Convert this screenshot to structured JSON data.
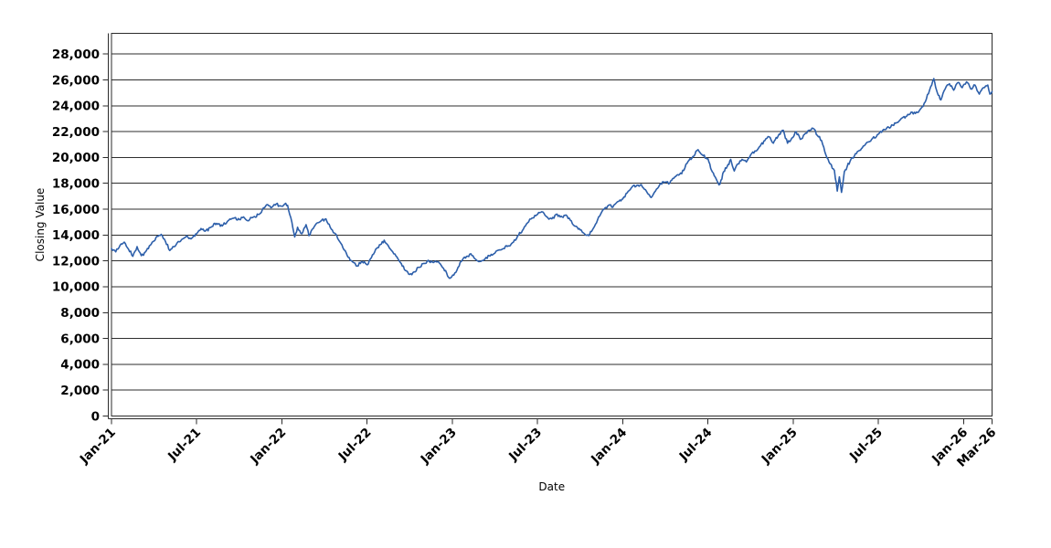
{
  "chart_data": {
    "type": "line",
    "title": "",
    "xlabel": "Date",
    "ylabel": "Closing Value",
    "legend": "none",
    "grid": "horizontal",
    "background": "#ffffff",
    "axis_color": "#2b2b2b",
    "grid_color": "#2e2e2e",
    "xlim_months": [
      0,
      62
    ],
    "ylim": [
      0,
      29600
    ],
    "ytick_interval": 2000,
    "yticks": [
      {
        "v": 0,
        "label": "0"
      },
      {
        "v": 2000,
        "label": "2,000"
      },
      {
        "v": 4000,
        "label": "4,000"
      },
      {
        "v": 6000,
        "label": "6,000"
      },
      {
        "v": 8000,
        "label": "8,000"
      },
      {
        "v": 10000,
        "label": "10,000"
      },
      {
        "v": 12000,
        "label": "12,000"
      },
      {
        "v": 14000,
        "label": "14,000"
      },
      {
        "v": 16000,
        "label": "16,000"
      },
      {
        "v": 18000,
        "label": "18,000"
      },
      {
        "v": 20000,
        "label": "20,000"
      },
      {
        "v": 22000,
        "label": "22,000"
      },
      {
        "v": 24000,
        "label": "24,000"
      },
      {
        "v": 26000,
        "label": "26,000"
      },
      {
        "v": 28000,
        "label": "28,000"
      }
    ],
    "xticks": [
      {
        "m": 0,
        "label": "Jan-21"
      },
      {
        "m": 6,
        "label": "Jul-21"
      },
      {
        "m": 12,
        "label": "Jan-22"
      },
      {
        "m": 18,
        "label": "Jul-22"
      },
      {
        "m": 24,
        "label": "Jan-23"
      },
      {
        "m": 30,
        "label": "Jul-23"
      },
      {
        "m": 36,
        "label": "Jan-24"
      },
      {
        "m": 42,
        "label": "Jul-24"
      },
      {
        "m": 48,
        "label": "Jan-25"
      },
      {
        "m": 54,
        "label": "Jul-25"
      },
      {
        "m": 60,
        "label": "Jan-26"
      },
      {
        "m": 62,
        "label": "Mar-26"
      }
    ],
    "series": [
      {
        "name": "Closing Value",
        "color": "#2d5faa",
        "points_format": "[months_since_Jan-2021, closing_value]",
        "points": [
          [
            0,
            12950
          ],
          [
            0.3,
            12700
          ],
          [
            0.6,
            13200
          ],
          [
            0.9,
            13450
          ],
          [
            1.2,
            12900
          ],
          [
            1.5,
            12350
          ],
          [
            1.8,
            13100
          ],
          [
            2.1,
            12400
          ],
          [
            2.4,
            12700
          ],
          [
            2.8,
            13300
          ],
          [
            3.2,
            13900
          ],
          [
            3.5,
            14050
          ],
          [
            3.8,
            13500
          ],
          [
            4.1,
            12800
          ],
          [
            4.4,
            13100
          ],
          [
            4.7,
            13500
          ],
          [
            5,
            13700
          ],
          [
            5.3,
            13950
          ],
          [
            5.6,
            13700
          ],
          [
            6,
            14100
          ],
          [
            6.3,
            14500
          ],
          [
            6.6,
            14300
          ],
          [
            7,
            14600
          ],
          [
            7.4,
            14900
          ],
          [
            7.8,
            14700
          ],
          [
            8.2,
            15100
          ],
          [
            8.6,
            15300
          ],
          [
            9,
            15200
          ],
          [
            9.3,
            15400
          ],
          [
            9.6,
            15100
          ],
          [
            10,
            15400
          ],
          [
            10.4,
            15600
          ],
          [
            10.7,
            16100
          ],
          [
            11,
            16350
          ],
          [
            11.3,
            16150
          ],
          [
            11.6,
            16400
          ],
          [
            11.9,
            16250
          ],
          [
            12.2,
            16400
          ],
          [
            12.4,
            16300
          ],
          [
            12.7,
            15000
          ],
          [
            12.9,
            13850
          ],
          [
            13.1,
            14600
          ],
          [
            13.4,
            14100
          ],
          [
            13.7,
            14800
          ],
          [
            13.9,
            13950
          ],
          [
            14.2,
            14500
          ],
          [
            14.5,
            14950
          ],
          [
            14.8,
            15150
          ],
          [
            15.1,
            15250
          ],
          [
            15.4,
            14600
          ],
          [
            15.7,
            14150
          ],
          [
            16,
            13600
          ],
          [
            16.3,
            13000
          ],
          [
            16.6,
            12400
          ],
          [
            17,
            11900
          ],
          [
            17.3,
            11600
          ],
          [
            17.6,
            11950
          ],
          [
            18,
            11700
          ],
          [
            18.3,
            12250
          ],
          [
            18.6,
            12900
          ],
          [
            19,
            13300
          ],
          [
            19.2,
            13600
          ],
          [
            19.5,
            13150
          ],
          [
            19.8,
            12700
          ],
          [
            20.1,
            12300
          ],
          [
            20.4,
            11800
          ],
          [
            20.7,
            11250
          ],
          [
            21,
            10950
          ],
          [
            21.3,
            11150
          ],
          [
            21.6,
            11500
          ],
          [
            22,
            11800
          ],
          [
            22.3,
            12050
          ],
          [
            22.6,
            11900
          ],
          [
            23,
            11950
          ],
          [
            23.3,
            11500
          ],
          [
            23.6,
            11050
          ],
          [
            23.8,
            10650
          ],
          [
            24.1,
            10900
          ],
          [
            24.4,
            11500
          ],
          [
            24.7,
            12050
          ],
          [
            25,
            12350
          ],
          [
            25.3,
            12550
          ],
          [
            25.6,
            12150
          ],
          [
            26,
            11950
          ],
          [
            26.3,
            12150
          ],
          [
            26.6,
            12400
          ],
          [
            27,
            12600
          ],
          [
            27.3,
            12850
          ],
          [
            27.6,
            12950
          ],
          [
            28,
            13150
          ],
          [
            28.3,
            13450
          ],
          [
            28.6,
            13950
          ],
          [
            29,
            14450
          ],
          [
            29.3,
            14950
          ],
          [
            29.6,
            15300
          ],
          [
            30,
            15600
          ],
          [
            30.3,
            15800
          ],
          [
            30.6,
            15450
          ],
          [
            31,
            15250
          ],
          [
            31.3,
            15600
          ],
          [
            31.6,
            15400
          ],
          [
            32,
            15550
          ],
          [
            32.3,
            15150
          ],
          [
            32.6,
            14700
          ],
          [
            33,
            14400
          ],
          [
            33.3,
            14100
          ],
          [
            33.6,
            13950
          ],
          [
            34,
            14650
          ],
          [
            34.3,
            15400
          ],
          [
            34.6,
            15950
          ],
          [
            35,
            16300
          ],
          [
            35.3,
            16150
          ],
          [
            35.6,
            16550
          ],
          [
            36,
            16800
          ],
          [
            36.3,
            17250
          ],
          [
            36.6,
            17650
          ],
          [
            37,
            17850
          ],
          [
            37.3,
            17900
          ],
          [
            37.6,
            17500
          ],
          [
            38,
            16900
          ],
          [
            38.3,
            17400
          ],
          [
            38.6,
            17900
          ],
          [
            39,
            18100
          ],
          [
            39.3,
            18000
          ],
          [
            39.6,
            18400
          ],
          [
            40,
            18700
          ],
          [
            40.3,
            19000
          ],
          [
            40.6,
            19700
          ],
          [
            41,
            20100
          ],
          [
            41.3,
            20600
          ],
          [
            41.6,
            20200
          ],
          [
            42,
            19900
          ],
          [
            42.25,
            19000
          ],
          [
            42.5,
            18500
          ],
          [
            42.7,
            18050
          ],
          [
            42.85,
            17950
          ],
          [
            43.1,
            18900
          ],
          [
            43.35,
            19300
          ],
          [
            43.6,
            19850
          ],
          [
            43.85,
            18950
          ],
          [
            44.1,
            19500
          ],
          [
            44.4,
            19850
          ],
          [
            44.7,
            19650
          ],
          [
            45,
            20200
          ],
          [
            45.3,
            20500
          ],
          [
            45.6,
            20800
          ],
          [
            46,
            21300
          ],
          [
            46.3,
            21600
          ],
          [
            46.6,
            21100
          ],
          [
            47,
            21800
          ],
          [
            47.3,
            22100
          ],
          [
            47.6,
            21100
          ],
          [
            47.9,
            21500
          ],
          [
            48.2,
            22000
          ],
          [
            48.5,
            21400
          ],
          [
            48.8,
            21800
          ],
          [
            49.1,
            22100
          ],
          [
            49.4,
            22250
          ],
          [
            49.7,
            21700
          ],
          [
            50,
            21300
          ],
          [
            50.3,
            20200
          ],
          [
            50.6,
            19500
          ],
          [
            50.9,
            19000
          ],
          [
            51.1,
            17400
          ],
          [
            51.25,
            18500
          ],
          [
            51.4,
            17300
          ],
          [
            51.6,
            18900
          ],
          [
            51.8,
            19300
          ],
          [
            52,
            19700
          ],
          [
            52.3,
            20100
          ],
          [
            52.6,
            20500
          ],
          [
            53,
            20900
          ],
          [
            53.3,
            21200
          ],
          [
            53.6,
            21500
          ],
          [
            54,
            21800
          ],
          [
            54.3,
            22100
          ],
          [
            54.6,
            22300
          ],
          [
            55,
            22500
          ],
          [
            55.3,
            22700
          ],
          [
            55.6,
            23000
          ],
          [
            56,
            23200
          ],
          [
            56.3,
            23500
          ],
          [
            56.6,
            23400
          ],
          [
            57,
            23800
          ],
          [
            57.3,
            24300
          ],
          [
            57.6,
            25200
          ],
          [
            57.9,
            26100
          ],
          [
            58.15,
            25000
          ],
          [
            58.4,
            24450
          ],
          [
            58.7,
            25300
          ],
          [
            59,
            25700
          ],
          [
            59.3,
            25200
          ],
          [
            59.6,
            25800
          ],
          [
            59.9,
            25400
          ],
          [
            60.2,
            25850
          ],
          [
            60.5,
            25300
          ],
          [
            60.8,
            25600
          ],
          [
            61.1,
            24900
          ],
          [
            61.4,
            25400
          ],
          [
            61.7,
            25600
          ],
          [
            61.85,
            24900
          ],
          [
            62,
            25100
          ]
        ]
      }
    ]
  }
}
